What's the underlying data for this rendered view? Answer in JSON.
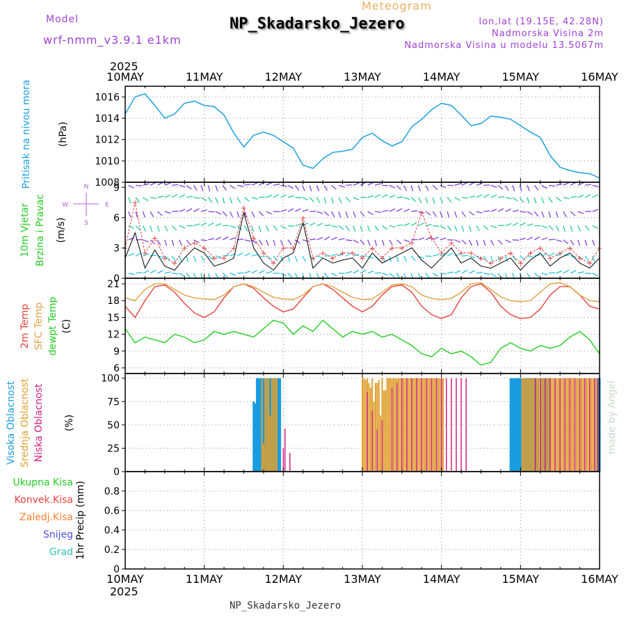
{
  "header": {
    "model_label": "Model",
    "model_value": "wrf-nmm_v3.9.1 e1km",
    "subtitle": "Meteogram",
    "title": "NP_Skadarsko_Jezero",
    "coords": "lon,lat (19.15E, 42.28N)",
    "elevation": "Nadmorska Visina 2m",
    "elevation_model": "Nadmorska Visina u modelu 13.5067m",
    "footer": "NP_Skadarsko_Jezero",
    "credit": "made by Angel"
  },
  "time_axis": {
    "year": "2025",
    "labels": [
      "10MAY",
      "11MAY",
      "12MAY",
      "13MAY",
      "14MAY",
      "15MAY",
      "16MAY"
    ]
  },
  "colors": {
    "pressure": "#1aa0e0",
    "temp2m": "#e8403a",
    "sfc_temp": "#e0a040",
    "dewpoint": "#22cc22",
    "high_cloud": "#1a9ce0",
    "mid_cloud": "#e0a030",
    "low_cloud": "#d02080",
    "wind_speed": "#000000",
    "gust": "#e04040"
  },
  "chart_data": [
    {
      "type": "line",
      "panel": "pressure",
      "ylabel_title": "Pritisak na nivou mora",
      "ylabel_unit": "(hPa)",
      "ylim": [
        1008,
        1017
      ],
      "yticks": [
        1008,
        1010,
        1012,
        1014,
        1016
      ],
      "grid": true,
      "x_hours": [
        0,
        3,
        6,
        9,
        12,
        15,
        18,
        21,
        24,
        27,
        30,
        33,
        36,
        39,
        42,
        45,
        48,
        51,
        54,
        57,
        60,
        63,
        66,
        69,
        72,
        75,
        78,
        81,
        84,
        87,
        90,
        93,
        96,
        99,
        102,
        105,
        108,
        111,
        114,
        117,
        120,
        123,
        126,
        129,
        132,
        135,
        138,
        141,
        144
      ],
      "series": [
        {
          "values": [
            1014.4,
            1016.0,
            1016.3,
            1015.2,
            1014.0,
            1014.4,
            1015.4,
            1015.6,
            1015.2,
            1015.1,
            1014.3,
            1012.6,
            1011.3,
            1012.4,
            1012.7,
            1012.4,
            1011.8,
            1011.2,
            1009.6,
            1009.3,
            1010.2,
            1010.8,
            1010.9,
            1011.1,
            1012.2,
            1012.6,
            1011.9,
            1011.4,
            1011.8,
            1013.2,
            1013.9,
            1014.8,
            1015.4,
            1015.2,
            1014.3,
            1013.3,
            1013.5,
            1014.2,
            1014.1,
            1013.9,
            1013.3,
            1012.7,
            1012.2,
            1010.5,
            1009.4,
            1009.1,
            1008.9,
            1008.8,
            1008.4
          ]
        }
      ]
    },
    {
      "type": "line",
      "panel": "wind",
      "ylabel_title_1": "10m Vjetar",
      "ylabel_title_2": "Brzina i Pravac",
      "ylabel_unit": "(m/s)",
      "compass": [
        "N",
        "W",
        "E",
        "S"
      ],
      "ylim": [
        0,
        9.5
      ],
      "yticks": [
        0,
        3,
        6,
        9
      ],
      "grid": true,
      "x_hours": [
        0,
        3,
        6,
        9,
        12,
        15,
        18,
        21,
        24,
        27,
        30,
        33,
        36,
        39,
        42,
        45,
        48,
        51,
        54,
        57,
        60,
        63,
        66,
        69,
        72,
        75,
        78,
        81,
        84,
        87,
        90,
        93,
        96,
        99,
        102,
        105,
        108,
        111,
        114,
        117,
        120,
        123,
        126,
        129,
        132,
        135,
        138,
        141,
        144
      ],
      "series": [
        {
          "name": "speed",
          "values": [
            2.0,
            4.5,
            1.0,
            2.8,
            1.2,
            0.8,
            2.0,
            3.0,
            2.5,
            1.2,
            1.5,
            2.0,
            6.5,
            3.0,
            1.5,
            0.8,
            2.0,
            2.5,
            5.5,
            1.0,
            2.0,
            1.5,
            1.8,
            2.0,
            1.0,
            2.5,
            1.5,
            2.0,
            2.5,
            3.0,
            1.8,
            1.0,
            2.0,
            3.0,
            1.5,
            2.0,
            1.2,
            1.0,
            1.5,
            2.0,
            0.8,
            1.8,
            2.5,
            1.2,
            2.0,
            2.5,
            1.5,
            1.0,
            2.0
          ]
        },
        {
          "name": "gust",
          "values": [
            3.0,
            7.5,
            2.5,
            4.0,
            2.0,
            1.5,
            3.0,
            3.5,
            3.0,
            2.0,
            2.0,
            3.0,
            7.0,
            4.0,
            2.5,
            1.5,
            3.0,
            3.0,
            6.0,
            2.0,
            2.5,
            2.0,
            2.5,
            2.5,
            2.0,
            3.0,
            2.0,
            3.0,
            3.0,
            3.5,
            6.5,
            4.0,
            2.5,
            3.5,
            2.5,
            2.5,
            2.0,
            1.5,
            2.0,
            2.5,
            1.5,
            2.5,
            3.0,
            2.0,
            2.5,
            3.0,
            2.0,
            1.5,
            3.0
          ]
        }
      ]
    },
    {
      "type": "line",
      "panel": "temperature",
      "ylabel_title_1": "2m Temp",
      "ylabel_title_2": "SFC Temp",
      "ylabel_title_3": "dewpt Temp",
      "ylabel_unit": "(C)",
      "ylim": [
        5,
        22
      ],
      "yticks": [
        6,
        9,
        12,
        15,
        18,
        21
      ],
      "grid": true,
      "x_hours": [
        0,
        3,
        6,
        9,
        12,
        15,
        18,
        21,
        24,
        27,
        30,
        33,
        36,
        39,
        42,
        45,
        48,
        51,
        54,
        57,
        60,
        63,
        66,
        69,
        72,
        75,
        78,
        81,
        84,
        87,
        90,
        93,
        96,
        99,
        102,
        105,
        108,
        111,
        114,
        117,
        120,
        123,
        126,
        129,
        132,
        135,
        138,
        141,
        144
      ],
      "series": [
        {
          "name": "2m Temp",
          "values": [
            17.0,
            15.0,
            18.0,
            20.5,
            20.8,
            19.5,
            17.5,
            15.8,
            15.0,
            16.0,
            18.5,
            20.5,
            21.0,
            20.2,
            18.5,
            17.0,
            16.0,
            16.5,
            18.5,
            20.5,
            21.0,
            20.0,
            18.5,
            17.0,
            16.0,
            17.0,
            19.0,
            20.5,
            20.8,
            19.5,
            17.0,
            15.5,
            14.8,
            15.5,
            18.5,
            20.5,
            21.0,
            19.5,
            17.0,
            15.5,
            14.8,
            15.0,
            16.5,
            19.0,
            20.5,
            20.5,
            19.0,
            17.0,
            16.5
          ]
        },
        {
          "name": "SFC Temp",
          "values": [
            18.5,
            18.0,
            20.0,
            21.0,
            21.0,
            20.0,
            19.0,
            18.5,
            18.3,
            18.2,
            19.0,
            20.5,
            21.0,
            20.5,
            19.5,
            18.6,
            18.3,
            18.2,
            19.0,
            20.5,
            21.0,
            20.5,
            19.5,
            18.6,
            18.2,
            18.3,
            19.5,
            20.8,
            21.0,
            20.5,
            19.0,
            18.4,
            18.2,
            18.4,
            19.5,
            21.0,
            21.2,
            20.0,
            18.7,
            18.0,
            17.8,
            18.0,
            19.5,
            21.0,
            21.2,
            20.5,
            19.0,
            18.0,
            17.8
          ]
        },
        {
          "name": "dewpt Temp",
          "values": [
            13.0,
            10.5,
            11.5,
            11.0,
            10.5,
            12.0,
            11.5,
            10.5,
            11.0,
            12.5,
            12.0,
            12.5,
            12.0,
            11.5,
            13.0,
            14.5,
            14.0,
            12.0,
            13.5,
            12.5,
            14.5,
            13.0,
            11.5,
            12.5,
            12.0,
            12.5,
            11.5,
            12.0,
            11.0,
            10.0,
            8.5,
            8.0,
            9.5,
            8.5,
            9.0,
            8.0,
            6.5,
            7.0,
            9.5,
            10.5,
            9.5,
            9.0,
            10.0,
            9.5,
            10.0,
            11.5,
            12.5,
            11.0,
            8.5
          ]
        }
      ]
    },
    {
      "type": "bar",
      "panel": "cloud",
      "ylabel_title_1": "Visoka Oblacnost",
      "ylabel_title_2": "Srednja Oblacnost",
      "ylabel_title_3": "Niska Oblacnost",
      "ylabel_unit": "(%)",
      "ylim": [
        0,
        105
      ],
      "yticks": [
        0,
        25,
        50,
        75,
        100
      ],
      "grid": true,
      "series": [
        {
          "name": "Visoka Oblacnost",
          "x_hours": [
            39.0,
            39.5,
            40.0,
            40.5,
            41.0,
            41.5,
            42.0,
            42.5,
            43.0,
            43.5,
            44.0,
            44.5,
            45.0,
            45.5,
            46.0,
            46.5,
            47.0,
            117.0,
            117.5,
            118.0,
            118.5,
            119.0,
            119.5,
            120.0,
            120.5,
            121.0,
            121.5,
            122.0,
            122.5,
            123.0,
            123.5,
            124.0,
            124.5,
            125.0,
            126.5,
            127.0,
            128.0,
            128.5,
            143.5,
            144.0
          ],
          "values": [
            75,
            73,
            100,
            100,
            100,
            100,
            100,
            100,
            100,
            100,
            100,
            100,
            100,
            100,
            100,
            100,
            100,
            100,
            100,
            100,
            100,
            100,
            100,
            100,
            100,
            100,
            100,
            100,
            100,
            100,
            100,
            100,
            100,
            100,
            100,
            100,
            100,
            100,
            100,
            100
          ]
        },
        {
          "name": "Srednja Oblacnost",
          "x_hours": [
            41.5,
            42.0,
            42.5,
            43.0,
            43.5,
            44.0,
            44.5,
            45.0,
            45.5,
            46.0,
            72.0,
            72.5,
            73.0,
            73.5,
            74.0,
            74.5,
            75.0,
            75.5,
            76.0,
            76.5,
            77.0,
            77.5,
            78.0,
            78.5,
            79.0,
            79.5,
            80.0,
            80.5,
            81.0,
            81.5,
            82.0,
            82.5,
            83.0,
            83.5,
            84.0,
            84.5,
            85.0,
            85.5,
            86.0,
            86.5,
            87.0,
            87.5,
            88.0,
            88.5,
            89.0,
            89.5,
            90.0,
            90.5,
            91.0,
            91.5,
            92.0,
            92.5,
            93.0,
            93.5,
            94.0,
            94.5,
            95.0,
            95.5,
            96.0,
            96.5,
            120.5,
            121.0,
            121.5,
            122.0,
            122.5,
            123.0,
            123.5,
            124.0,
            124.5,
            125.0,
            125.5,
            126.0,
            126.5,
            127.0,
            127.5,
            128.0,
            128.5,
            129.0,
            129.5,
            130.0,
            130.5,
            131.0,
            131.5,
            132.0,
            132.5,
            133.0,
            133.5,
            134.0,
            134.5,
            135.0,
            135.5,
            136.0,
            136.5,
            137.0,
            137.5,
            138.0,
            138.5,
            139.0,
            139.5,
            140.0,
            140.5,
            141.0,
            141.5,
            142.0,
            142.5,
            143.0
          ],
          "values": [
            100,
            30,
            100,
            100,
            100,
            60,
            100,
            100,
            100,
            100,
            100,
            100,
            98,
            100,
            95,
            90,
            100,
            75,
            95,
            95,
            98,
            60,
            100,
            87,
            87,
            100,
            100,
            100,
            100,
            100,
            100,
            100,
            100,
            100,
            100,
            100,
            100,
            100,
            100,
            100,
            100,
            100,
            100,
            100,
            100,
            100,
            100,
            100,
            100,
            100,
            100,
            100,
            100,
            100,
            100,
            100,
            100,
            100,
            100,
            100,
            100,
            100,
            100,
            100,
            100,
            100,
            100,
            100,
            100,
            100,
            100,
            100,
            100,
            100,
            100,
            100,
            100,
            100,
            100,
            100,
            100,
            100,
            100,
            100,
            100,
            100,
            100,
            100,
            100,
            100,
            100,
            100,
            100,
            100,
            100,
            100,
            100,
            100,
            100,
            100,
            100,
            100,
            100,
            100,
            100,
            100
          ]
        },
        {
          "name": "Niska Oblacnost",
          "x_hours": [
            48.0,
            48.5,
            50.0,
            73.5,
            75.0,
            76.5,
            78.0,
            81.0,
            82.5,
            84.0,
            85.5,
            87.0,
            88.5,
            90.0,
            91.5,
            93.0,
            94.5,
            96.0,
            97.5,
            99.0,
            100.5,
            102.0,
            103.5,
            124.5,
            126.0,
            127.5,
            129.0,
            130.5,
            132.0,
            133.5,
            135.0,
            136.5,
            138.0,
            139.5,
            141.0,
            142.5,
            143.5
          ],
          "values": [
            25,
            46,
            20,
            85,
            65,
            45,
            55,
            90,
            95,
            100,
            100,
            100,
            100,
            100,
            100,
            100,
            100,
            100,
            100,
            100,
            100,
            100,
            100,
            100,
            100,
            100,
            100,
            100,
            100,
            100,
            100,
            100,
            100,
            100,
            100,
            100,
            100
          ]
        }
      ]
    },
    {
      "type": "line",
      "panel": "precipitation",
      "legend": [
        "Ukupna Kisa",
        "Konvek.Kisa",
        "Zaledj.Kisa",
        "Snijeg",
        "Grad"
      ],
      "ylabel_title": "1hr Precip",
      "ylabel_unit": "(mm)",
      "ylim": [
        0,
        1.0
      ],
      "yticks": [
        0,
        0.2,
        0.4,
        0.6,
        0.8
      ],
      "ytick_labels": [
        "0",
        "0.2",
        "0.4",
        "0.6",
        "0.8"
      ],
      "grid": true,
      "x_hours": [
        0,
        144
      ],
      "series": [
        {
          "name": "Ukupna Kisa",
          "values": [
            0,
            0
          ]
        }
      ]
    }
  ]
}
